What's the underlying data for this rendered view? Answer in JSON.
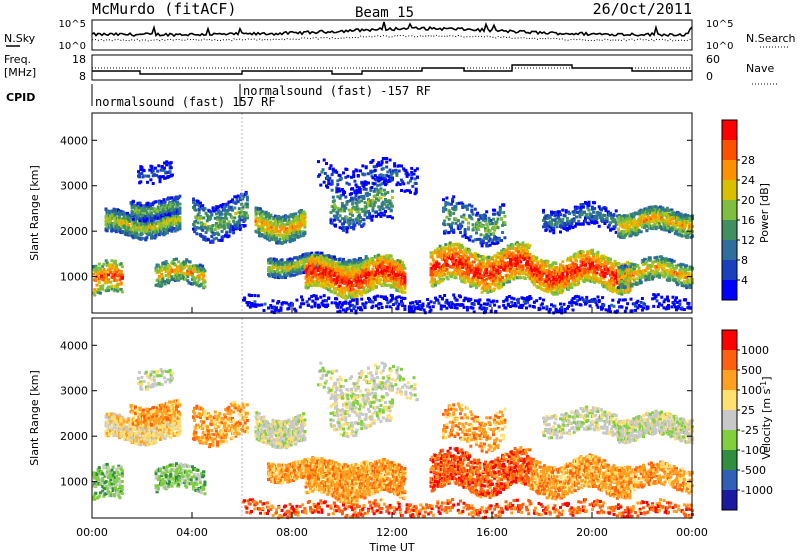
{
  "header": {
    "station": "McMurdo (fitACF)",
    "beam": "Beam 15",
    "date": "26/Oct/2011"
  },
  "top_panel": {
    "left_label": "N.Sky",
    "left_ticks": [
      "10^5",
      "10^0"
    ],
    "right_ticks": [
      "10^5",
      "10^0"
    ],
    "right_label": "N.Search"
  },
  "freq_panel": {
    "left_label_1": "Freq.",
    "left_label_2": "[MHz]",
    "left_ticks": [
      "18",
      "8"
    ],
    "right_ticks": [
      "60",
      "0"
    ],
    "right_label": "Nave"
  },
  "cpid": {
    "label": "CPID",
    "segment_1": "normalsound (fast) 157 RF",
    "segment_2": "normalsound (fast) -157 RF"
  },
  "colors": {
    "power_scale": [
      "#0000ff",
      "#1a3fbf",
      "#2c6e9c",
      "#3f8f5f",
      "#7fbf3f",
      "#d8c000",
      "#ff9000",
      "#ff5000",
      "#ff0000"
    ],
    "velocity_scale": [
      "#1a1aa0",
      "#2f60b8",
      "#2f8f3f",
      "#7fcf3f",
      "#c8c8c8",
      "#ffe070",
      "#ffa020",
      "#ff6010",
      "#ff0000"
    ]
  },
  "chart_data": [
    {
      "type": "heatmap",
      "panel": "power",
      "ylabel": "Slant Range [km]",
      "yticks": [
        "1000",
        "2000",
        "3000",
        "4000"
      ],
      "ylim": [
        200,
        4600
      ],
      "xlim": [
        0,
        24
      ],
      "colorbar_label": "Power [dB]",
      "colorbar_ticks": [
        "4",
        "8",
        "12",
        "16",
        "20",
        "24",
        "28"
      ],
      "clim": [
        0,
        32
      ]
    },
    {
      "type": "heatmap",
      "panel": "velocity",
      "ylabel": "Slant Range [km]",
      "yticks": [
        "1000",
        "2000",
        "3000",
        "4000"
      ],
      "ylim": [
        200,
        4600
      ],
      "xlim": [
        0,
        24
      ],
      "xlabel": "Time UT",
      "xticks": [
        "00:00",
        "04:00",
        "08:00",
        "12:00",
        "16:00",
        "20:00",
        "00:00"
      ],
      "colorbar_label": "Velocity [m s",
      "colorbar_label_sup": "-1",
      "colorbar_label_end": "]",
      "colorbar_ticks": [
        "1000",
        "500",
        "100",
        "25",
        "-25",
        "-100",
        "-500",
        "-1000"
      ]
    }
  ]
}
